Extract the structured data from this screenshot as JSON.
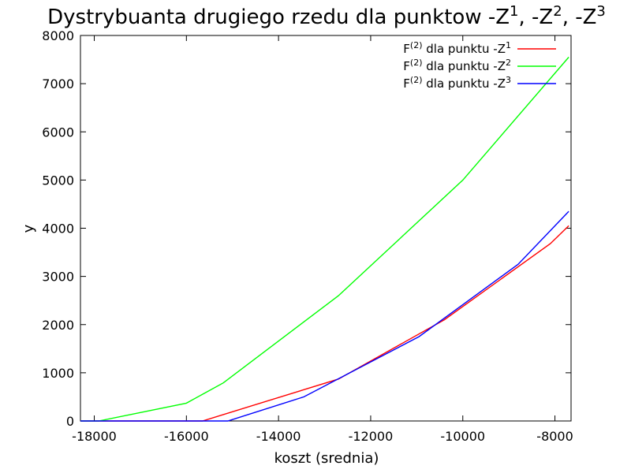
{
  "chart_data": {
    "type": "line",
    "title": {
      "text": "Dystrybuanta drugiego rzedu dla punktow ",
      "vars": [
        {
          "base": "-Z",
          "sup": "1"
        },
        {
          "base": "-Z",
          "sup": "2"
        },
        {
          "base": "-Z",
          "sup": "3"
        }
      ]
    },
    "xlabel": "koszt (srednia)",
    "ylabel": "y",
    "xlim": [
      -18300,
      -7650
    ],
    "ylim": [
      0,
      8000
    ],
    "xticks": [
      -18000,
      -16000,
      -14000,
      -12000,
      -10000,
      -8000
    ],
    "yticks": [
      0,
      1000,
      2000,
      3000,
      4000,
      5000,
      6000,
      7000,
      8000
    ],
    "grid": false,
    "legend_position": "top-right",
    "series": [
      {
        "name": {
          "prefix": "F",
          "sup1": "(2)",
          "middle": " dla punktu -Z",
          "sup2": "1"
        },
        "color": "#ff0000",
        "points": [
          [
            -18300,
            0
          ],
          [
            -15650,
            0
          ],
          [
            -12700,
            870
          ],
          [
            -10400,
            2100
          ],
          [
            -8100,
            3680
          ],
          [
            -7700,
            4050
          ]
        ]
      },
      {
        "name": {
          "prefix": "F",
          "sup1": "(2)",
          "middle": " dla punktu -Z",
          "sup2": "2"
        },
        "color": "#00ff00",
        "points": [
          [
            -18300,
            0
          ],
          [
            -17900,
            0
          ],
          [
            -16000,
            370
          ],
          [
            -15200,
            790
          ],
          [
            -12700,
            2600
          ],
          [
            -10000,
            5000
          ],
          [
            -7700,
            7550
          ]
        ]
      },
      {
        "name": {
          "prefix": "F",
          "sup1": "(2)",
          "middle": " dla punktu -Z",
          "sup2": "3"
        },
        "color": "#0000ff",
        "points": [
          [
            -18300,
            0
          ],
          [
            -15100,
            0
          ],
          [
            -13450,
            500
          ],
          [
            -10950,
            1750
          ],
          [
            -8800,
            3250
          ],
          [
            -7700,
            4350
          ]
        ]
      }
    ]
  }
}
